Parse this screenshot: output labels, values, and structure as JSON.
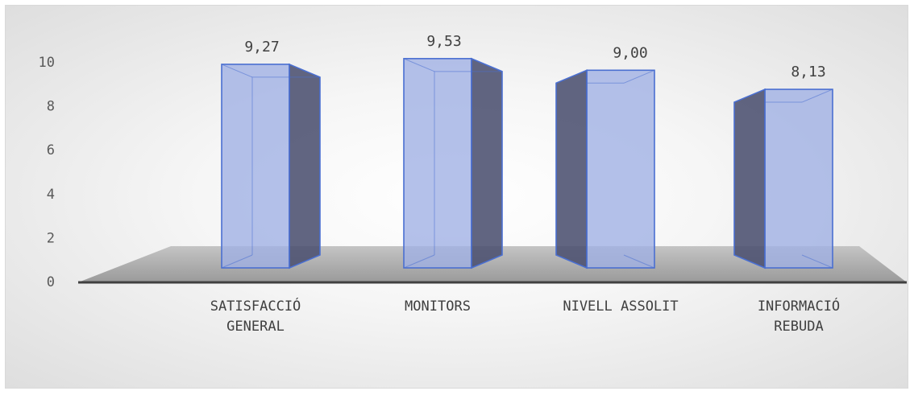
{
  "chart_data": {
    "type": "bar",
    "categories": [
      [
        "SATISFACCIÓ",
        "GENERAL"
      ],
      [
        "MONITORS"
      ],
      [
        "NIVELL ASSOLIT"
      ],
      [
        "INFORMACIÓ",
        "REBUDA"
      ]
    ],
    "values": [
      9.27,
      9.53,
      9.0,
      8.13
    ],
    "data_labels": [
      "9,27",
      "9,53",
      "9,00",
      "8,13"
    ],
    "ylim": [
      0,
      10
    ],
    "yticks": [
      "0",
      "2",
      "4",
      "6",
      "8",
      "10"
    ],
    "grid": false,
    "legend": "none",
    "colors": {
      "bar_front": "#9fb0e4",
      "bar_edge": "#4a6fd1",
      "bar_side_dark": "#4b5070",
      "floor": "#a8a8a8",
      "axis": "#404040"
    }
  }
}
